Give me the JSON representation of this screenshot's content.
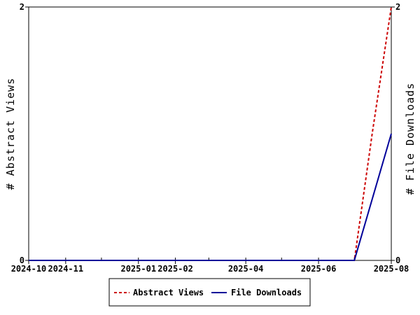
{
  "chart_data": {
    "type": "line",
    "title": "",
    "x_ticks": [
      "2024-10",
      "2024-11",
      "2025-01",
      "2025-02",
      "2025-04",
      "2025-06",
      "2025-08"
    ],
    "y_left": {
      "label": "# Abstract Views",
      "ylim": [
        0,
        2
      ],
      "ticks": [
        "0",
        "2"
      ]
    },
    "y_right": {
      "label": "# File Downloads",
      "ylim": [
        0,
        2
      ],
      "ticks": [
        "0",
        "2"
      ]
    },
    "grid": false,
    "legend_position": "bottom-center",
    "series": [
      {
        "name": "Abstract Views",
        "axis": "left",
        "color": "#cc0000",
        "dash": "dashed",
        "points": [
          [
            "2024-10-01",
            0
          ],
          [
            "2025-07-01",
            0
          ],
          [
            "2025-07-16",
            1
          ],
          [
            "2025-08-01",
            2
          ]
        ]
      },
      {
        "name": "File Downloads",
        "axis": "right",
        "color": "#000099",
        "dash": "solid",
        "points": [
          [
            "2024-10-01",
            0
          ],
          [
            "2025-07-01",
            0
          ],
          [
            "2025-08-01",
            1
          ]
        ]
      }
    ]
  }
}
